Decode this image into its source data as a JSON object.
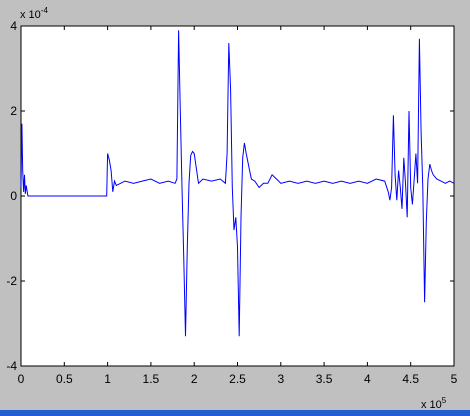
{
  "chart_data": {
    "type": "line",
    "title": "",
    "xlabel": "",
    "ylabel": "",
    "x_exponent_label": "x 10",
    "x_exponent": "5",
    "y_exponent_label": "x 10",
    "y_exponent": "-4",
    "xlim": [
      0,
      5
    ],
    "ylim": [
      -4,
      4
    ],
    "x_ticks": [
      0,
      0.5,
      1,
      1.5,
      2,
      2.5,
      3,
      3.5,
      4,
      4.5,
      5
    ],
    "x_tick_labels": [
      "0",
      "0.5",
      "1",
      "1.5",
      "2",
      "2.5",
      "3",
      "3.5",
      "4",
      "4.5",
      "5"
    ],
    "y_ticks": [
      -4,
      -2,
      0,
      2,
      4
    ],
    "y_tick_labels": [
      "-4",
      "-2",
      "0",
      "2",
      "4"
    ],
    "grid": false,
    "series": [
      {
        "color": "#0000ff",
        "x": [
          0.0,
          0.01,
          0.02,
          0.03,
          0.04,
          0.05,
          0.06,
          0.08,
          0.1,
          0.2,
          0.4,
          0.6,
          0.8,
          0.99,
          1.0,
          1.02,
          1.04,
          1.06,
          1.08,
          1.1,
          1.15,
          1.2,
          1.3,
          1.4,
          1.5,
          1.6,
          1.7,
          1.78,
          1.8,
          1.82,
          1.84,
          1.86,
          1.88,
          1.9,
          1.92,
          1.94,
          1.96,
          1.98,
          2.0,
          2.05,
          2.1,
          2.2,
          2.3,
          2.36,
          2.38,
          2.4,
          2.42,
          2.44,
          2.46,
          2.48,
          2.5,
          2.52,
          2.54,
          2.56,
          2.58,
          2.6,
          2.62,
          2.64,
          2.66,
          2.7,
          2.75,
          2.8,
          2.85,
          2.9,
          2.95,
          3.0,
          3.1,
          3.2,
          3.3,
          3.4,
          3.5,
          3.6,
          3.7,
          3.8,
          3.9,
          4.0,
          4.1,
          4.2,
          4.24,
          4.26,
          4.28,
          4.3,
          4.32,
          4.34,
          4.36,
          4.38,
          4.4,
          4.42,
          4.44,
          4.46,
          4.48,
          4.5,
          4.52,
          4.54,
          4.56,
          4.58,
          4.6,
          4.62,
          4.64,
          4.66,
          4.68,
          4.7,
          4.72,
          4.74,
          4.76,
          4.8,
          4.85,
          4.9,
          4.95,
          5.0
        ],
        "y": [
          0.2,
          1.7,
          0.6,
          0.1,
          0.5,
          0.05,
          0.25,
          0.0,
          0.0,
          0.0,
          0.0,
          0.0,
          0.0,
          0.0,
          1.0,
          0.85,
          0.6,
          0.1,
          0.35,
          0.25,
          0.3,
          0.35,
          0.3,
          0.35,
          0.4,
          0.3,
          0.35,
          0.3,
          0.4,
          3.9,
          2.0,
          0.1,
          -1.5,
          -3.3,
          -1.2,
          0.3,
          0.95,
          1.05,
          1.0,
          0.3,
          0.4,
          0.35,
          0.4,
          0.3,
          1.0,
          3.6,
          2.5,
          0.2,
          -0.8,
          -0.5,
          -1.2,
          -3.3,
          -0.5,
          0.9,
          1.25,
          1.0,
          0.8,
          0.6,
          0.4,
          0.35,
          0.2,
          0.3,
          0.3,
          0.5,
          0.4,
          0.3,
          0.35,
          0.3,
          0.35,
          0.3,
          0.35,
          0.3,
          0.35,
          0.3,
          0.35,
          0.3,
          0.4,
          0.35,
          0.1,
          -0.1,
          0.2,
          1.9,
          0.5,
          -0.1,
          0.6,
          0.2,
          -0.3,
          0.9,
          0.3,
          -0.5,
          2.0,
          0.2,
          -0.2,
          0.4,
          1.0,
          0.3,
          3.7,
          1.5,
          0.2,
          -2.5,
          -0.6,
          0.4,
          0.75,
          0.6,
          0.5,
          0.4,
          0.35,
          0.3,
          0.35,
          0.3
        ]
      }
    ]
  }
}
